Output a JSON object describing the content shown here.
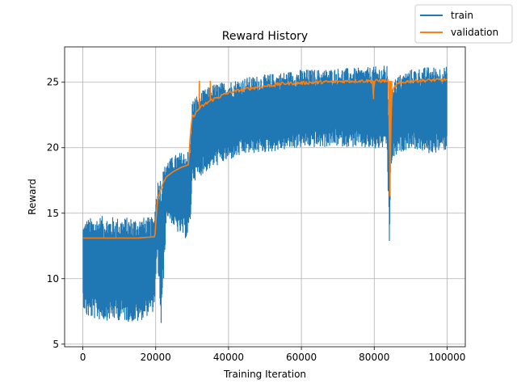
{
  "chart_data": {
    "type": "line",
    "title": "Reward History",
    "xlabel": "Training Iteration",
    "ylabel": "Reward",
    "xlim": [
      -5000,
      105000
    ],
    "ylim": [
      4.8,
      27.7
    ],
    "xticks": [
      0,
      20000,
      40000,
      60000,
      80000,
      100000
    ],
    "yticks": [
      5,
      10,
      15,
      20,
      25
    ],
    "grid": true,
    "legend_position": "top-right",
    "colors": {
      "train": "#1f77b4",
      "validation": "#ff7f0e"
    },
    "series": [
      {
        "name": "train",
        "style": "noisy band (min/max envelope per iteration window)",
        "x": [
          0,
          1000,
          5000,
          10000,
          15000,
          19500,
          20500,
          21500,
          23000,
          26000,
          28500,
          29500,
          30000,
          31000,
          33000,
          36000,
          40000,
          45000,
          50000,
          55000,
          60000,
          65000,
          70000,
          75000,
          80000,
          83500,
          84200,
          84600,
          85000,
          87000,
          90000,
          95000,
          100000
        ],
        "upper": [
          14.2,
          14.6,
          14.8,
          14.7,
          14.7,
          14.7,
          17.5,
          18.0,
          19.0,
          19.6,
          19.8,
          19.8,
          23.6,
          24.0,
          24.4,
          24.9,
          25.1,
          25.4,
          25.6,
          25.8,
          26.0,
          26.0,
          26.1,
          26.1,
          26.2,
          26.3,
          20.8,
          24.0,
          25.2,
          25.6,
          26.0,
          26.2,
          26.2
        ],
        "lower": [
          8.0,
          7.0,
          6.8,
          6.8,
          6.6,
          7.5,
          11.5,
          6.0,
          14.8,
          13.5,
          13.0,
          14.0,
          17.5,
          17.5,
          18.0,
          18.5,
          19.0,
          19.5,
          19.6,
          19.8,
          20.0,
          20.0,
          20.1,
          20.0,
          19.8,
          20.0,
          12.1,
          18.5,
          19.0,
          19.6,
          20.0,
          19.5,
          19.8
        ]
      },
      {
        "name": "validation",
        "x": [
          0,
          5000,
          10000,
          15000,
          19800,
          20000,
          20500,
          21000,
          22000,
          23000,
          25000,
          27000,
          29000,
          29500,
          30000,
          32000,
          35000,
          40000,
          45000,
          50000,
          55000,
          60000,
          65000,
          70000,
          75000,
          79500,
          79800,
          80000,
          80200,
          84000,
          84300,
          84500,
          84800,
          85200,
          86000,
          88000,
          90000,
          95000,
          100000
        ],
        "values": [
          13.1,
          13.1,
          13.1,
          13.1,
          13.2,
          14.2,
          16.0,
          16.5,
          17.3,
          17.8,
          18.2,
          18.5,
          18.7,
          21.0,
          22.3,
          23.0,
          23.6,
          24.2,
          24.5,
          24.7,
          24.9,
          24.95,
          25.0,
          25.05,
          25.1,
          25.1,
          23.7,
          25.1,
          25.1,
          25.1,
          16.3,
          21.0,
          23.8,
          24.4,
          24.8,
          25.0,
          25.1,
          25.15,
          25.2
        ]
      }
    ]
  }
}
